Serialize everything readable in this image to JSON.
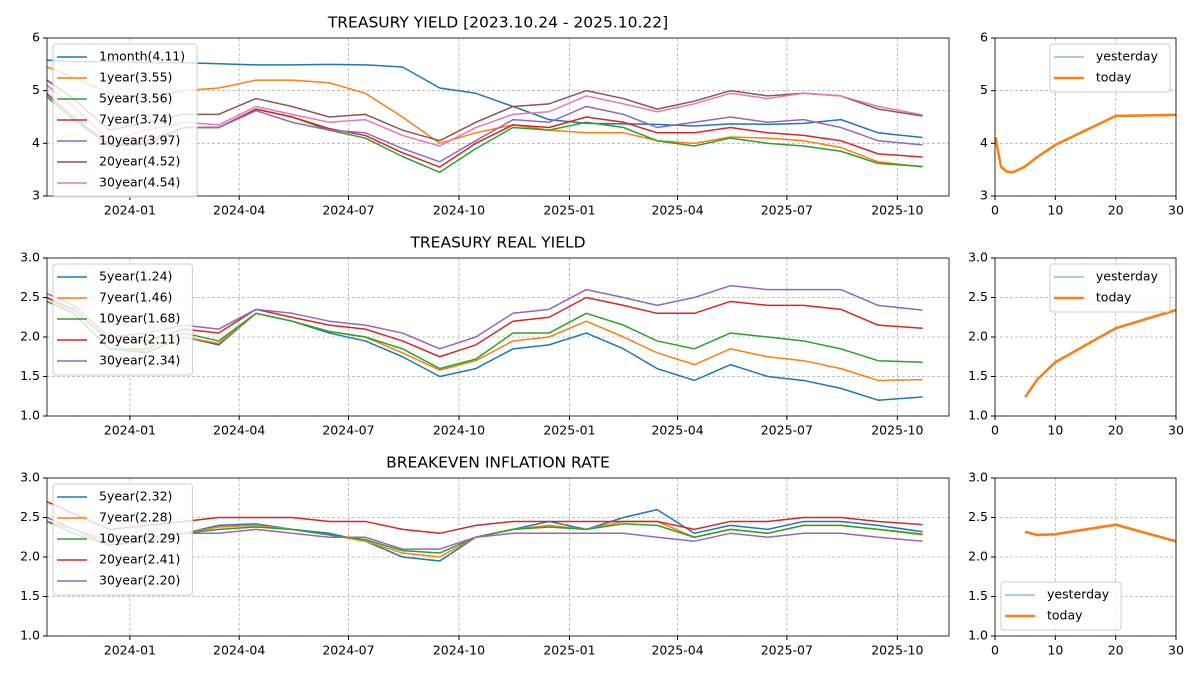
{
  "chart_data": [
    {
      "type": "line",
      "title": "TREASURY YIELD [2023.10.24 - 2025.10.22]",
      "grid": true,
      "legend": "upper left",
      "x": [
        "2023-10-24",
        "2023-11-15",
        "2023-12-15",
        "2024-01-15",
        "2024-02-15",
        "2024-03-15",
        "2024-04-15",
        "2024-05-15",
        "2024-06-15",
        "2024-07-15",
        "2024-08-15",
        "2024-09-15",
        "2024-10-15",
        "2024-11-15",
        "2024-12-15",
        "2025-01-15",
        "2025-02-15",
        "2025-03-15",
        "2025-04-15",
        "2025-05-15",
        "2025-06-15",
        "2025-07-15",
        "2025-08-15",
        "2025-09-15",
        "2025-10-22"
      ],
      "xlim": [
        "2023-10-24",
        "2025-11-13"
      ],
      "xticks": [
        "2024-01",
        "2024-04",
        "2024-07",
        "2024-10",
        "2025-01",
        "2025-04",
        "2025-07",
        "2025-10"
      ],
      "ylim": [
        3,
        6
      ],
      "yticks": [
        3,
        4,
        5,
        6
      ],
      "series": [
        {
          "name": "1month(4.11)",
          "color": "#1f77b4",
          "values": [
            5.58,
            5.55,
            5.55,
            5.53,
            5.53,
            5.51,
            5.49,
            5.49,
            5.5,
            5.49,
            5.45,
            5.05,
            4.95,
            4.7,
            4.45,
            4.38,
            4.37,
            4.36,
            4.33,
            4.37,
            4.36,
            4.38,
            4.45,
            4.2,
            4.11
          ]
        },
        {
          "name": "1year(3.55)",
          "color": "#ff7f0e",
          "values": [
            5.45,
            5.25,
            4.95,
            4.85,
            5.0,
            5.05,
            5.2,
            5.2,
            5.15,
            4.95,
            4.5,
            4.0,
            4.2,
            4.35,
            4.25,
            4.2,
            4.2,
            4.05,
            4.0,
            4.12,
            4.1,
            4.05,
            3.92,
            3.65,
            3.55
          ]
        },
        {
          "name": "5year(3.56)",
          "color": "#2ca02c",
          "values": [
            4.88,
            4.45,
            3.95,
            3.98,
            4.3,
            4.3,
            4.65,
            4.5,
            4.25,
            4.1,
            3.75,
            3.45,
            3.9,
            4.3,
            4.25,
            4.4,
            4.3,
            4.05,
            3.95,
            4.1,
            4.0,
            3.95,
            3.85,
            3.62,
            3.56
          ]
        },
        {
          "name": "7year(3.74)",
          "color": "#d62728",
          "values": [
            4.93,
            4.5,
            3.98,
            4.0,
            4.3,
            4.3,
            4.65,
            4.5,
            4.28,
            4.15,
            3.82,
            3.55,
            4.0,
            4.35,
            4.3,
            4.5,
            4.4,
            4.2,
            4.2,
            4.3,
            4.2,
            4.15,
            4.05,
            3.8,
            3.74
          ]
        },
        {
          "name": "10year(3.97)",
          "color": "#9467bd",
          "values": [
            4.95,
            4.5,
            3.95,
            4.05,
            4.3,
            4.3,
            4.62,
            4.4,
            4.25,
            4.2,
            3.9,
            3.65,
            4.05,
            4.45,
            4.4,
            4.7,
            4.55,
            4.3,
            4.4,
            4.5,
            4.4,
            4.45,
            4.3,
            4.05,
            3.97
          ]
        },
        {
          "name": "20year(4.52)",
          "color": "#8c564b",
          "values": [
            5.2,
            4.85,
            4.25,
            4.4,
            4.55,
            4.55,
            4.85,
            4.7,
            4.5,
            4.55,
            4.25,
            4.05,
            4.4,
            4.7,
            4.75,
            5.0,
            4.85,
            4.65,
            4.8,
            5.0,
            4.9,
            4.95,
            4.9,
            4.65,
            4.52
          ]
        },
        {
          "name": "30year(4.54)",
          "color": "#e377c2",
          "values": [
            5.1,
            4.7,
            4.05,
            4.25,
            4.4,
            4.35,
            4.7,
            4.55,
            4.4,
            4.45,
            4.15,
            3.95,
            4.3,
            4.55,
            4.6,
            4.9,
            4.75,
            4.6,
            4.75,
            4.95,
            4.85,
            4.95,
            4.9,
            4.7,
            4.54
          ]
        }
      ]
    },
    {
      "type": "line",
      "grid": true,
      "legend": "upper right",
      "x": [
        0.083,
        1,
        2,
        3,
        5,
        7,
        10,
        20,
        30
      ],
      "xlim": [
        0,
        30
      ],
      "xticks": [
        0,
        10,
        20,
        30
      ],
      "ylim": [
        3,
        6
      ],
      "yticks": [
        3,
        4,
        5,
        6
      ],
      "series": [
        {
          "name": "yesterday",
          "color": "#8fbbd9",
          "linewidth": 1.5,
          "values": [
            4.12,
            3.56,
            3.47,
            3.46,
            3.57,
            3.75,
            3.98,
            4.53,
            4.55
          ]
        },
        {
          "name": "today",
          "color": "#ff7f0e",
          "linewidth": 2.5,
          "values": [
            4.11,
            3.55,
            3.46,
            3.45,
            3.56,
            3.74,
            3.97,
            4.52,
            4.54
          ]
        }
      ]
    },
    {
      "type": "line",
      "title": "TREASURY REAL YIELD",
      "grid": true,
      "legend": "upper left",
      "x": [
        "2023-10-24",
        "2023-11-15",
        "2023-12-15",
        "2024-01-15",
        "2024-02-15",
        "2024-03-15",
        "2024-04-15",
        "2024-05-15",
        "2024-06-15",
        "2024-07-15",
        "2024-08-15",
        "2024-09-15",
        "2024-10-15",
        "2024-11-15",
        "2024-12-15",
        "2025-01-15",
        "2025-02-15",
        "2025-03-15",
        "2025-04-15",
        "2025-05-15",
        "2025-06-15",
        "2025-07-15",
        "2025-08-15",
        "2025-09-15",
        "2025-10-22"
      ],
      "xlim": [
        "2023-10-24",
        "2025-11-13"
      ],
      "xticks": [
        "2024-01",
        "2024-04",
        "2024-07",
        "2024-10",
        "2025-01",
        "2025-04",
        "2025-07",
        "2025-10"
      ],
      "ylim": [
        1,
        3
      ],
      "yticks": [
        {
          "value": 1,
          "label": "1.0"
        },
        1.5,
        {
          "value": 2,
          "label": "2.0"
        },
        2.5,
        {
          "value": 3,
          "label": "3.0"
        }
      ],
      "series": [
        {
          "name": "5year(1.24)",
          "color": "#1f77b4",
          "values": [
            2.5,
            2.3,
            1.85,
            1.8,
            2.0,
            1.9,
            2.3,
            2.2,
            2.05,
            1.95,
            1.75,
            1.5,
            1.6,
            1.85,
            1.9,
            2.05,
            1.85,
            1.6,
            1.45,
            1.65,
            1.5,
            1.45,
            1.35,
            1.2,
            1.24
          ]
        },
        {
          "name": "7year(1.46)",
          "color": "#ff7f0e",
          "values": [
            2.5,
            2.3,
            1.85,
            1.82,
            2.0,
            1.92,
            2.3,
            2.2,
            2.07,
            2.0,
            1.8,
            1.58,
            1.7,
            1.95,
            2.0,
            2.2,
            2.0,
            1.8,
            1.65,
            1.85,
            1.75,
            1.7,
            1.6,
            1.45,
            1.46
          ]
        },
        {
          "name": "10year(1.68)",
          "color": "#2ca02c",
          "values": [
            2.45,
            2.3,
            1.85,
            1.85,
            2.05,
            1.95,
            2.3,
            2.2,
            2.07,
            2.0,
            1.85,
            1.6,
            1.72,
            2.05,
            2.05,
            2.3,
            2.15,
            1.95,
            1.85,
            2.05,
            2.0,
            1.95,
            1.85,
            1.7,
            1.68
          ]
        },
        {
          "name": "20year(2.11)",
          "color": "#d62728",
          "values": [
            2.5,
            2.35,
            1.95,
            1.95,
            2.1,
            2.05,
            2.35,
            2.25,
            2.15,
            2.1,
            1.95,
            1.75,
            1.9,
            2.2,
            2.25,
            2.5,
            2.4,
            2.3,
            2.3,
            2.45,
            2.4,
            2.4,
            2.35,
            2.15,
            2.11
          ]
        },
        {
          "name": "30year(2.34)",
          "color": "#9467bd",
          "values": [
            2.55,
            2.4,
            2.0,
            2.05,
            2.15,
            2.1,
            2.35,
            2.3,
            2.2,
            2.15,
            2.05,
            1.85,
            2.0,
            2.3,
            2.35,
            2.6,
            2.5,
            2.4,
            2.5,
            2.65,
            2.6,
            2.6,
            2.6,
            2.4,
            2.34
          ]
        }
      ]
    },
    {
      "type": "line",
      "grid": true,
      "legend": "upper right",
      "x": [
        5,
        7,
        10,
        20,
        30
      ],
      "xlim": [
        0,
        30
      ],
      "xticks": [
        0,
        10,
        20,
        30
      ],
      "ylim": [
        1,
        3
      ],
      "yticks": [
        {
          "value": 1,
          "label": "1.0"
        },
        1.5,
        {
          "value": 2,
          "label": "2.0"
        },
        2.5,
        {
          "value": 3,
          "label": "3.0"
        }
      ],
      "series": [
        {
          "name": "yesterday",
          "color": "#8fbbd9",
          "linewidth": 1.5,
          "values": [
            1.25,
            1.47,
            1.69,
            2.12,
            2.35
          ]
        },
        {
          "name": "today",
          "color": "#ff7f0e",
          "linewidth": 2.5,
          "values": [
            1.24,
            1.46,
            1.68,
            2.11,
            2.34
          ]
        }
      ]
    },
    {
      "type": "line",
      "title": "BREAKEVEN INFLATION RATE",
      "grid": true,
      "legend": "upper left",
      "x": [
        "2023-10-24",
        "2023-11-15",
        "2023-12-15",
        "2024-01-15",
        "2024-02-15",
        "2024-03-15",
        "2024-04-15",
        "2024-05-15",
        "2024-06-15",
        "2024-07-15",
        "2024-08-15",
        "2024-09-15",
        "2024-10-15",
        "2024-11-15",
        "2024-12-15",
        "2025-01-15",
        "2025-02-15",
        "2025-03-15",
        "2025-04-15",
        "2025-05-15",
        "2025-06-15",
        "2025-07-15",
        "2025-08-15",
        "2025-09-15",
        "2025-10-22"
      ],
      "xlim": [
        "2023-10-24",
        "2025-11-13"
      ],
      "xticks": [
        "2024-01",
        "2024-04",
        "2024-07",
        "2024-10",
        "2025-01",
        "2025-04",
        "2025-07",
        "2025-10"
      ],
      "ylim": [
        1,
        3
      ],
      "yticks": [
        {
          "value": 1,
          "label": "1.0"
        },
        1.5,
        {
          "value": 2,
          "label": "2.0"
        },
        2.5,
        {
          "value": 3,
          "label": "3.0"
        }
      ],
      "series": [
        {
          "name": "5year(2.32)",
          "color": "#1f77b4",
          "values": [
            2.45,
            2.35,
            2.15,
            2.2,
            2.3,
            2.4,
            2.42,
            2.35,
            2.3,
            2.2,
            2.0,
            1.95,
            2.25,
            2.35,
            2.45,
            2.35,
            2.5,
            2.6,
            2.3,
            2.4,
            2.35,
            2.45,
            2.45,
            2.4,
            2.32
          ]
        },
        {
          "name": "7year(2.28)",
          "color": "#ff7f0e",
          "values": [
            2.45,
            2.35,
            2.15,
            2.2,
            2.3,
            2.38,
            2.4,
            2.35,
            2.28,
            2.2,
            2.05,
            2.0,
            2.25,
            2.35,
            2.4,
            2.35,
            2.45,
            2.45,
            2.25,
            2.35,
            2.3,
            2.4,
            2.4,
            2.35,
            2.28
          ]
        },
        {
          "name": "10year(2.29)",
          "color": "#2ca02c",
          "values": [
            2.45,
            2.3,
            2.15,
            2.2,
            2.3,
            2.35,
            2.38,
            2.35,
            2.28,
            2.22,
            2.08,
            2.05,
            2.25,
            2.35,
            2.38,
            2.35,
            2.42,
            2.4,
            2.25,
            2.35,
            2.3,
            2.4,
            2.4,
            2.35,
            2.29
          ]
        },
        {
          "name": "20year(2.41)",
          "color": "#d62728",
          "values": [
            2.7,
            2.55,
            2.35,
            2.4,
            2.45,
            2.5,
            2.5,
            2.5,
            2.45,
            2.45,
            2.35,
            2.3,
            2.4,
            2.45,
            2.45,
            2.45,
            2.45,
            2.45,
            2.35,
            2.45,
            2.45,
            2.5,
            2.5,
            2.45,
            2.41
          ]
        },
        {
          "name": "30year(2.20)",
          "color": "#9467bd",
          "values": [
            2.5,
            2.35,
            2.2,
            2.25,
            2.3,
            2.3,
            2.35,
            2.3,
            2.25,
            2.25,
            2.1,
            2.1,
            2.25,
            2.3,
            2.3,
            2.3,
            2.3,
            2.25,
            2.2,
            2.3,
            2.25,
            2.3,
            2.3,
            2.25,
            2.2
          ]
        }
      ]
    },
    {
      "type": "line",
      "grid": true,
      "legend": "lower left",
      "x": [
        5,
        7,
        10,
        20,
        30
      ],
      "xlim": [
        0,
        30
      ],
      "xticks": [
        0,
        10,
        20,
        30
      ],
      "ylim": [
        1,
        3
      ],
      "yticks": [
        {
          "value": 1,
          "label": "1.0"
        },
        1.5,
        {
          "value": 2,
          "label": "2.0"
        },
        2.5,
        {
          "value": 3,
          "label": "3.0"
        }
      ],
      "series": [
        {
          "name": "yesterday",
          "color": "#8fbbd9",
          "linewidth": 1.5,
          "values": [
            2.31,
            2.27,
            2.28,
            2.4,
            2.19
          ]
        },
        {
          "name": "today",
          "color": "#ff7f0e",
          "linewidth": 2.5,
          "values": [
            2.32,
            2.28,
            2.29,
            2.41,
            2.2
          ]
        }
      ]
    }
  ]
}
